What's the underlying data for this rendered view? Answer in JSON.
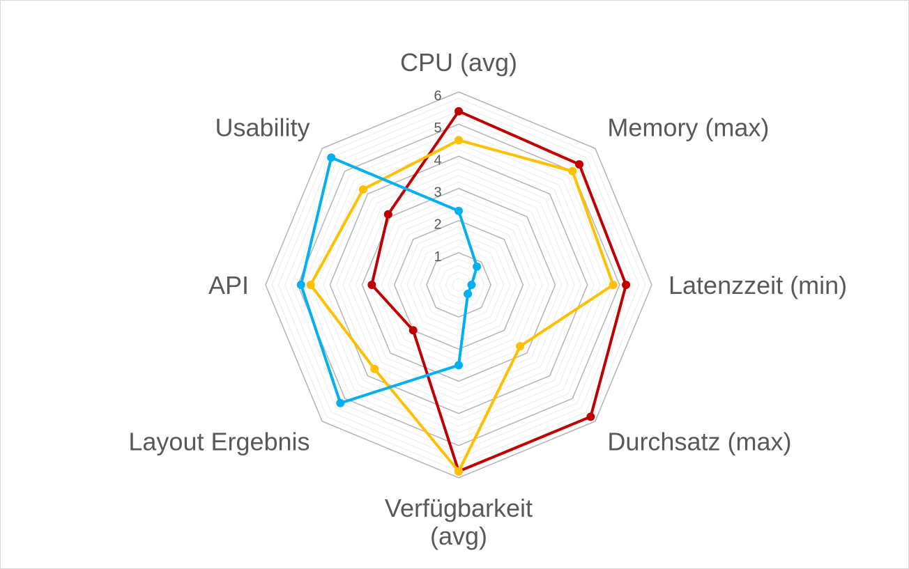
{
  "chart_data": {
    "type": "radar",
    "title": "",
    "categories": [
      [
        "CPU (avg)"
      ],
      [
        "Memory (max)"
      ],
      [
        "Latenzzeit (min)"
      ],
      [
        "Durchsatz (max)"
      ],
      [
        "Verfügbarkeit",
        "(avg)"
      ],
      [
        "Layout Ergebnis"
      ],
      [
        "API"
      ],
      [
        "Usability"
      ]
    ],
    "r_ticks": [
      "1",
      "2",
      "3",
      "4",
      "5",
      "6"
    ],
    "rlim": [
      0,
      6
    ],
    "grid": true,
    "legend": "none",
    "series": [
      {
        "color": "#C00000",
        "values": [
          5.4,
          5.3,
          5.2,
          5.8,
          5.8,
          2.0,
          2.7,
          3.1
        ]
      },
      {
        "color": "#FFC000",
        "values": [
          4.5,
          5.0,
          4.8,
          2.7,
          5.8,
          3.7,
          4.6,
          4.2
        ]
      },
      {
        "color": "#00B0F0",
        "values": [
          2.3,
          0.8,
          0.4,
          0.4,
          2.5,
          5.2,
          4.9,
          5.6
        ]
      }
    ]
  }
}
